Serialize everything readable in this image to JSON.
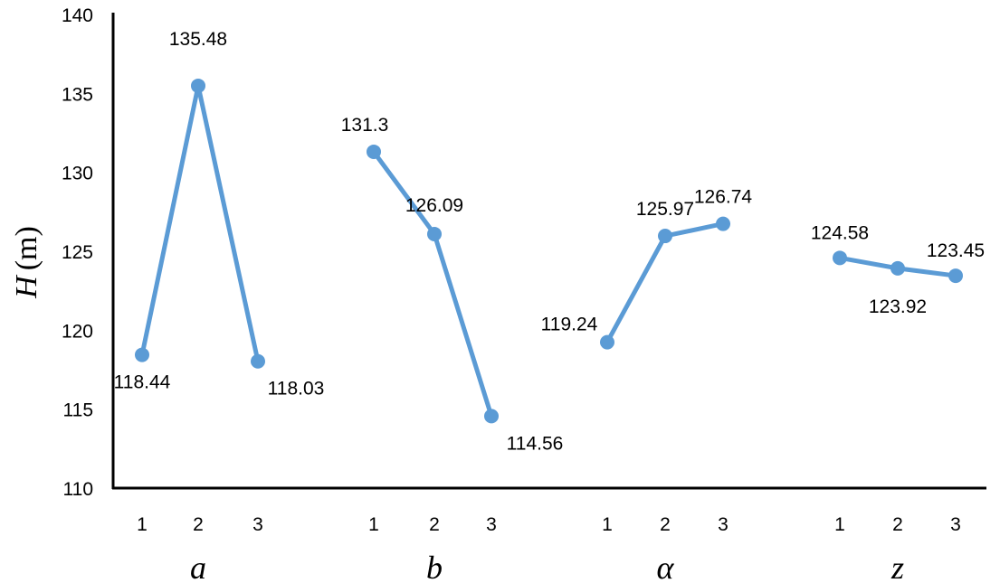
{
  "chart_data": {
    "type": "line",
    "ylabel_var": "H",
    "ylabel_unit": "(m)",
    "ylim": [
      110,
      140
    ],
    "yticks": [
      110,
      115,
      120,
      125,
      130,
      135,
      140
    ],
    "grid": false,
    "line_color": "#5B9BD5",
    "groups": [
      {
        "name": "a",
        "x": [
          "1",
          "2",
          "3"
        ],
        "values": [
          118.44,
          135.48,
          118.03
        ],
        "labels": [
          "118.44",
          "135.48",
          "118.03"
        ]
      },
      {
        "name": "b",
        "x": [
          "1",
          "2",
          "3"
        ],
        "values": [
          131.3,
          126.09,
          114.56
        ],
        "labels": [
          "131.3",
          "126.09",
          "114.56"
        ]
      },
      {
        "name": "α",
        "x": [
          "1",
          "2",
          "3"
        ],
        "values": [
          119.24,
          125.97,
          126.74
        ],
        "labels": [
          "119.24",
          "125.97",
          "126.74"
        ]
      },
      {
        "name": "z",
        "x": [
          "1",
          "2",
          "3"
        ],
        "values": [
          124.58,
          123.92,
          123.45
        ],
        "labels": [
          "124.58",
          "123.92",
          "123.45"
        ]
      }
    ]
  }
}
